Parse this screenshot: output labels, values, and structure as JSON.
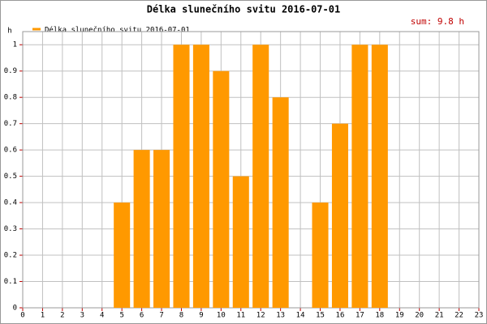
{
  "chart_data": {
    "type": "bar",
    "title": "Délka slunečního svitu 2016-07-01",
    "legend": "Délka slunečního svitu 2016-07-01",
    "annotation": "sum: 9.8 h",
    "y_label": "h",
    "x": [
      5,
      6,
      7,
      8,
      9,
      10,
      11,
      12,
      13,
      15,
      16,
      17,
      18
    ],
    "values": [
      0.4,
      0.6,
      0.6,
      1,
      1,
      0.9,
      0.5,
      1,
      0.8,
      0.4,
      0.7,
      1,
      1
    ],
    "color": "#ff9900",
    "xlim": [
      0,
      23
    ],
    "xticks": [
      0,
      1,
      2,
      3,
      4,
      5,
      6,
      7,
      8,
      9,
      10,
      11,
      12,
      13,
      14,
      15,
      16,
      17,
      18,
      19,
      20,
      21,
      22,
      23
    ],
    "ylim": [
      0,
      1.05
    ],
    "yticks": [
      0,
      0.1,
      0.2,
      0.3,
      0.4,
      0.5,
      0.6,
      0.7,
      0.8,
      0.9,
      1
    ],
    "grid": true
  }
}
